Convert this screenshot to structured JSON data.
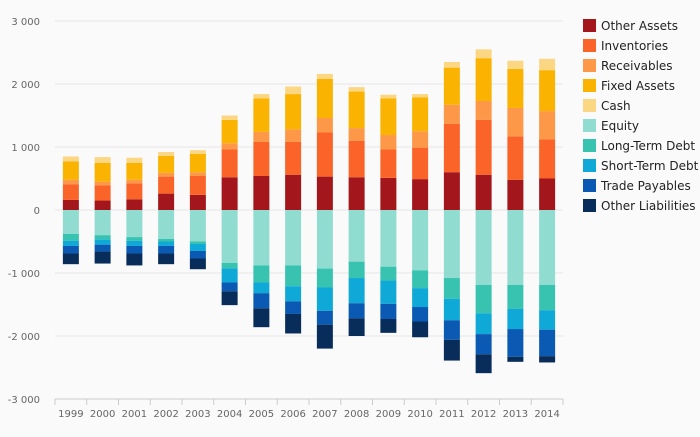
{
  "chart_data": {
    "type": "bar",
    "stacked": true,
    "title": "",
    "xlabel": "",
    "ylabel": "",
    "ylim": [
      -3000,
      3000
    ],
    "yticks": [
      3000,
      2000,
      1000,
      0,
      -1000,
      -2000,
      -3000
    ],
    "ytick_labels": [
      "3 000",
      "2 000",
      "1 000",
      "0",
      "-1 000",
      "-2 000",
      "-3 000"
    ],
    "grid": "horizontal",
    "legend_position": "right",
    "categories": [
      "1999",
      "2000",
      "2001",
      "2002",
      "2003",
      "2004",
      "2005",
      "2006",
      "2007",
      "2008",
      "2009",
      "2010",
      "2011",
      "2012",
      "2013",
      "2014"
    ],
    "series": [
      {
        "name": "Other Assets",
        "color": "#a3161b",
        "values": [
          160,
          150,
          170,
          260,
          240,
          520,
          540,
          560,
          530,
          520,
          510,
          490,
          600,
          560,
          480,
          500
        ]
      },
      {
        "name": "Inventories",
        "color": "#fb6428",
        "values": [
          250,
          240,
          250,
          270,
          300,
          440,
          540,
          520,
          700,
          580,
          450,
          500,
          770,
          870,
          690,
          620
        ]
      },
      {
        "name": "Receivables",
        "color": "#fc9847",
        "values": [
          70,
          60,
          60,
          60,
          60,
          100,
          160,
          200,
          230,
          200,
          230,
          260,
          300,
          300,
          450,
          450
        ]
      },
      {
        "name": "Fixed Assets",
        "color": "#f9b300",
        "values": [
          290,
          300,
          270,
          270,
          290,
          370,
          530,
          560,
          620,
          580,
          580,
          540,
          590,
          680,
          620,
          650
        ]
      },
      {
        "name": "Cash",
        "color": "#fbd784",
        "values": [
          80,
          90,
          80,
          60,
          60,
          70,
          70,
          120,
          80,
          70,
          60,
          50,
          90,
          140,
          130,
          180
        ]
      },
      {
        "name": "Equity",
        "color": "#91dcd0",
        "values": [
          -380,
          -400,
          -430,
          -460,
          -500,
          -840,
          -880,
          -880,
          -930,
          -820,
          -900,
          -960,
          -1080,
          -1190,
          -1190,
          -1190
        ]
      },
      {
        "name": "Long-Term Debt",
        "color": "#37c3af",
        "values": [
          -110,
          -70,
          -60,
          -40,
          -40,
          -90,
          -270,
          -330,
          -300,
          -260,
          -220,
          -280,
          -330,
          -450,
          -380,
          -400
        ]
      },
      {
        "name": "Short-Term Debt",
        "color": "#0fa9d7",
        "values": [
          -80,
          -80,
          -80,
          -70,
          -110,
          -220,
          -170,
          -240,
          -370,
          -400,
          -370,
          -300,
          -340,
          -330,
          -320,
          -310
        ]
      },
      {
        "name": "Trade Payables",
        "color": "#0a5ab4",
        "values": [
          -120,
          -110,
          -120,
          -120,
          -120,
          -140,
          -240,
          -200,
          -220,
          -240,
          -240,
          -230,
          -310,
          -320,
          -440,
          -420
        ]
      },
      {
        "name": "Other Liabilities",
        "color": "#082d5a",
        "values": [
          -170,
          -190,
          -190,
          -170,
          -170,
          -220,
          -300,
          -310,
          -380,
          -280,
          -220,
          -250,
          -330,
          -300,
          -80,
          -100
        ]
      }
    ]
  }
}
